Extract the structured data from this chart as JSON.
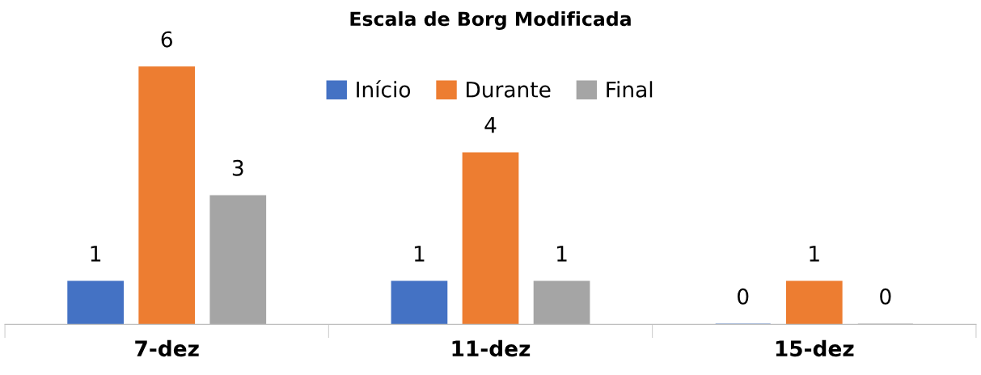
{
  "chart_data": {
    "type": "bar",
    "title": "Escala de Borg Modificada",
    "categories": [
      "7-dez",
      "11-dez",
      "15-dez"
    ],
    "series": [
      {
        "name": "Início",
        "color": "#4472c4",
        "values": [
          1,
          1,
          0
        ]
      },
      {
        "name": "Durante",
        "color": "#ed7d31",
        "values": [
          6,
          4,
          1
        ]
      },
      {
        "name": "Final",
        "color": "#a5a5a5",
        "values": [
          3,
          1,
          0
        ]
      }
    ],
    "data_labels": true,
    "legend": "top",
    "grid": false,
    "tick_labels": "x"
  }
}
